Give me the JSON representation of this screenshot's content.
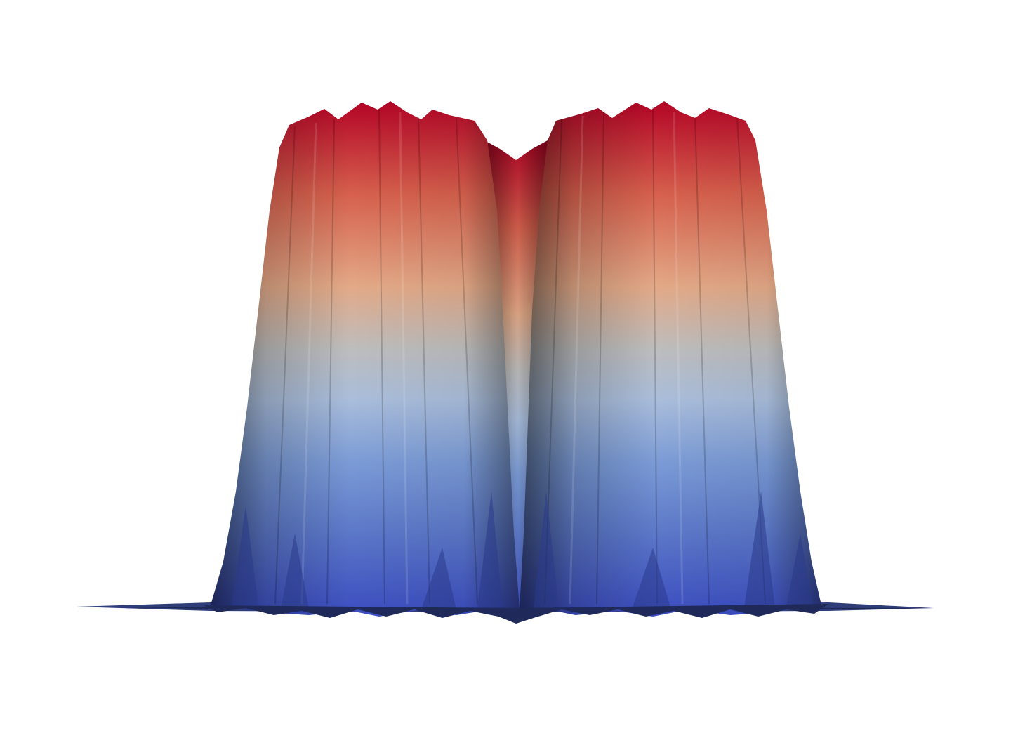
{
  "scene": {
    "background": "#ffffff",
    "colormap": {
      "name": "coolwarm",
      "stops": [
        "#b40426",
        "#d6604d",
        "#e3a987",
        "#bdbdbd",
        "#a9bddb",
        "#7b9bd6",
        "#5b77c8",
        "#3b4cc0"
      ]
    },
    "shading": {
      "ridge_dark": "#1a1a1a",
      "base_dark": "#1f2a5a"
    },
    "surface": {
      "description_kind": "double-plateau-surface",
      "peak_count": 2
    }
  }
}
